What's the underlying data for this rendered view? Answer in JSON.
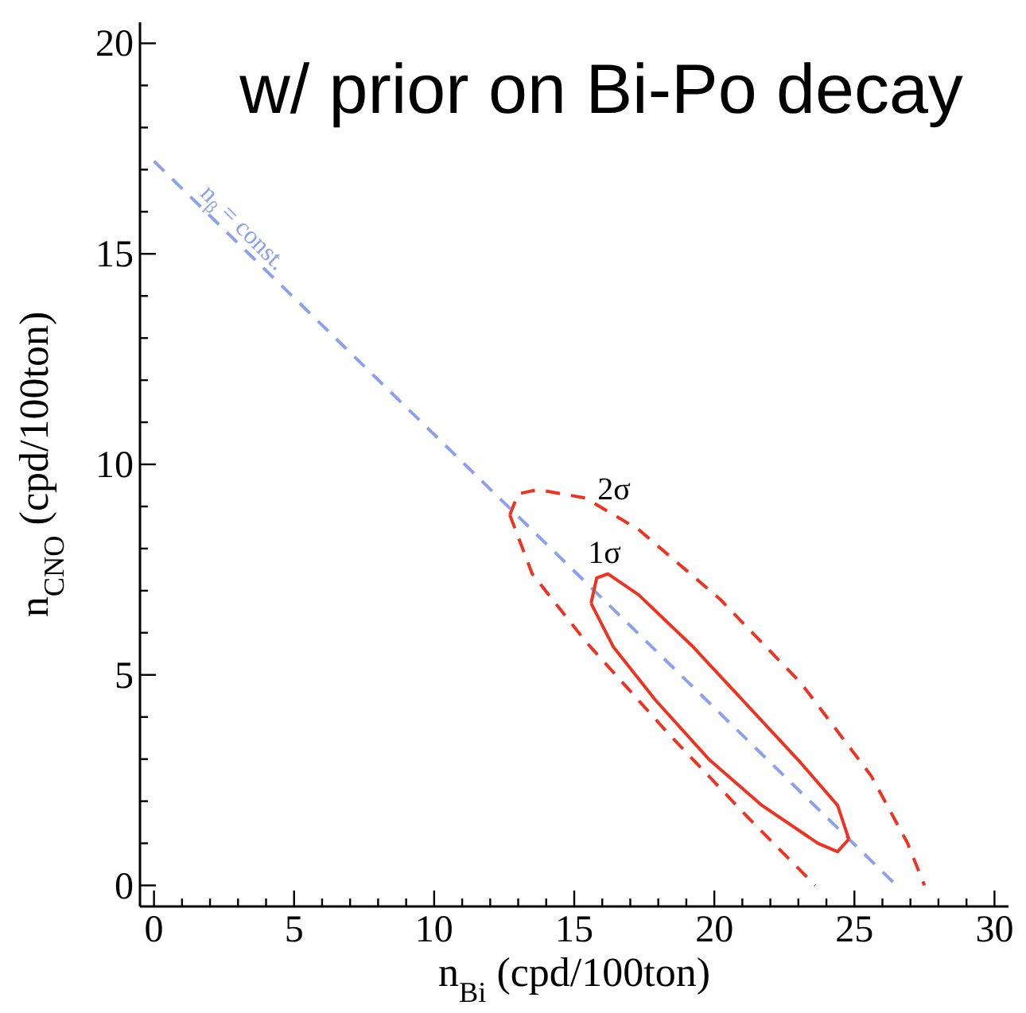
{
  "chart_data": {
    "type": "line",
    "title": "w/ prior on Bi-Po decay",
    "xlabel": "n$_{Bi}$ (cpd/100ton)",
    "ylabel": "n$_{CNO}$ (cpd/100ton)",
    "xlim": [
      -0.5,
      30.5
    ],
    "ylim": [
      -0.5,
      20.5
    ],
    "xticks": [
      0,
      {
        "value": 1,
        "label": null
      },
      {
        "value": 2,
        "label": null
      },
      {
        "value": 3,
        "label": null
      },
      {
        "value": 4,
        "label": null
      },
      5,
      {
        "value": 6,
        "label": null
      },
      {
        "value": 7,
        "label": null
      },
      {
        "value": 8,
        "label": null
      },
      {
        "value": 9,
        "label": null
      },
      10,
      {
        "value": 11,
        "label": null
      },
      {
        "value": 12,
        "label": null
      },
      {
        "value": 13,
        "label": null
      },
      {
        "value": 14,
        "label": null
      },
      15,
      {
        "value": 16,
        "label": null
      },
      {
        "value": 17,
        "label": null
      },
      {
        "value": 18,
        "label": null
      },
      {
        "value": 19,
        "label": null
      },
      20,
      {
        "value": 21,
        "label": null
      },
      {
        "value": 22,
        "label": null
      },
      {
        "value": 23,
        "label": null
      },
      {
        "value": 24,
        "label": null
      },
      25,
      {
        "value": 26,
        "label": null
      },
      {
        "value": 27,
        "label": null
      },
      {
        "value": 28,
        "label": null
      },
      {
        "value": 29,
        "label": null
      },
      30
    ],
    "yticks": [
      0,
      {
        "value": 1,
        "label": null
      },
      {
        "value": 2,
        "label": null
      },
      {
        "value": 3,
        "label": null
      },
      {
        "value": 4,
        "label": null
      },
      5,
      {
        "value": 6,
        "label": null
      },
      {
        "value": 7,
        "label": null
      },
      {
        "value": 8,
        "label": null
      },
      {
        "value": 9,
        "label": null
      },
      10,
      {
        "value": 11,
        "label": null
      },
      {
        "value": 12,
        "label": null
      },
      {
        "value": 13,
        "label": null
      },
      {
        "value": 14,
        "label": null
      },
      15,
      {
        "value": 16,
        "label": null
      },
      {
        "value": 17,
        "label": null
      },
      {
        "value": 18,
        "label": null
      },
      {
        "value": 19,
        "label": null
      },
      20
    ],
    "grid": false,
    "legend": false,
    "marker": "none",
    "series": [
      {
        "type": "line",
        "color": "#8da0ee",
        "line_style": "dashed",
        "x": [
          0,
          26.5
        ],
        "values": [
          17.2,
          0
        ]
      },
      {
        "type": "line",
        "color": "#ee3322",
        "line_style": "solid",
        "x": [
          15.6,
          15.8,
          16.2,
          17.3,
          19.25,
          21.15,
          23.1,
          24.4,
          24.8
        ],
        "values": [
          6.7,
          7.3,
          7.4,
          6.9,
          5.66,
          4.3,
          2.9,
          1.9,
          1.1
        ]
      },
      {
        "type": "line",
        "color": "#ee3322",
        "line_style": "solid",
        "x": [
          15.6,
          16.4,
          17.9,
          19.8,
          21.7,
          23.7,
          24.4,
          24.8
        ],
        "values": [
          6.7,
          5.66,
          4.4,
          3.0,
          1.9,
          1.0,
          0.8,
          1.1
        ]
      },
      {
        "type": "line",
        "color": "#ee3322",
        "line_style": "dashed",
        "x": [
          12.7,
          13.0,
          13.7,
          15.4,
          17.3,
          20.2,
          23.1,
          25.6,
          26.9,
          27.5
        ],
        "values": [
          8.8,
          9.3,
          9.4,
          9.2,
          8.45,
          6.8,
          4.8,
          2.6,
          1.0,
          0
        ]
      },
      {
        "type": "line",
        "color": "#ee3322",
        "line_style": "dashed",
        "x": [
          12.7,
          13.5,
          15.4,
          18.3,
          21.15,
          23.6
        ],
        "values": [
          8.8,
          7.4,
          5.8,
          3.65,
          1.65,
          0
        ]
      }
    ],
    "annotations": [
      "2σ",
      "1σ",
      "n$_{β}$ = const."
    ]
  }
}
